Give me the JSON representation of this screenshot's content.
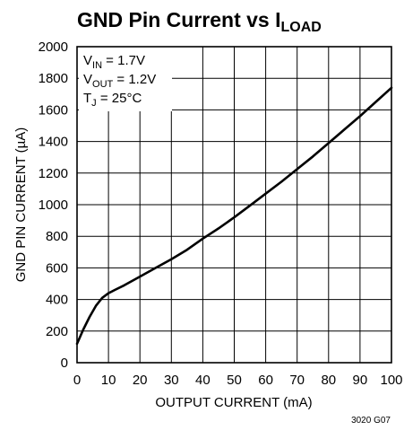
{
  "chart_data": {
    "type": "line",
    "title": "GND Pin Current vs I",
    "title_subscript": "LOAD",
    "xlabel": "OUTPUT CURRENT (mA)",
    "ylabel": "GND PIN CURRENT (µA)",
    "xlim": [
      0,
      100
    ],
    "ylim": [
      0,
      2000
    ],
    "x_ticks": [
      0,
      10,
      20,
      30,
      40,
      50,
      60,
      70,
      80,
      90,
      100
    ],
    "y_ticks": [
      0,
      200,
      400,
      600,
      800,
      1000,
      1200,
      1400,
      1600,
      1800,
      2000
    ],
    "grid": true,
    "conditions": [
      {
        "main": "V",
        "sub": "IN",
        "rest": " = 1.7V"
      },
      {
        "main": "V",
        "sub": "OUT",
        "rest": " = 1.2V"
      },
      {
        "main": "T",
        "sub": "J",
        "rest": " = 25°C"
      }
    ],
    "figure_id": "3020 G07",
    "series": [
      {
        "color": "#000000",
        "x": [
          0,
          2,
          4,
          6,
          8,
          9,
          10,
          12,
          15,
          20,
          25,
          30,
          35,
          40,
          45,
          50,
          55,
          60,
          65,
          70,
          75,
          80,
          85,
          90,
          95,
          100
        ],
        "y": [
          120,
          210,
          290,
          360,
          410,
          425,
          440,
          460,
          490,
          545,
          600,
          655,
          715,
          785,
          850,
          920,
          995,
          1070,
          1145,
          1225,
          1305,
          1390,
          1475,
          1560,
          1650,
          1740
        ]
      }
    ]
  }
}
